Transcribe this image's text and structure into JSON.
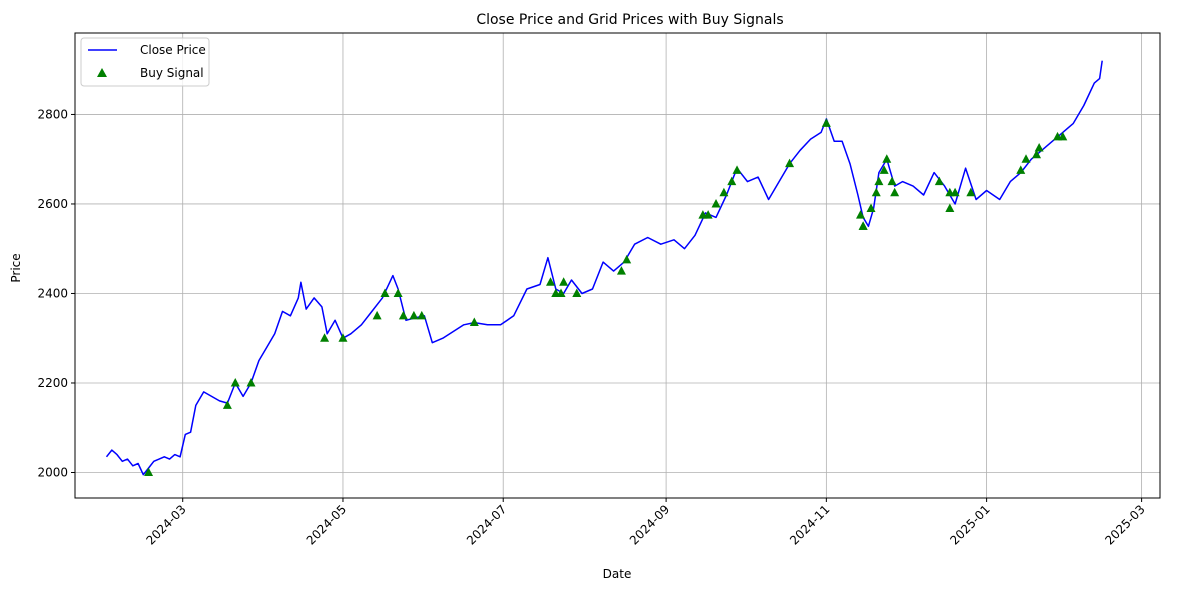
{
  "chart_data": {
    "type": "line",
    "title": "Close Price and Grid Prices with Buy Signals",
    "xlabel": "Date",
    "ylabel": "Price",
    "xlim": [
      "2024-01-20",
      "2025-03-08"
    ],
    "ylim": [
      1943,
      2982
    ],
    "grid": true,
    "legend_position": "top-left",
    "x_ticks": [
      "2024-03",
      "2024-05",
      "2024-07",
      "2024-09",
      "2024-11",
      "2025-01",
      "2025-03"
    ],
    "x_tick_dates": [
      "2024-03-01",
      "2024-05-01",
      "2024-07-01",
      "2024-09-01",
      "2024-11-01",
      "2025-01-01",
      "2025-03-01"
    ],
    "y_ticks": [
      2000,
      2200,
      2400,
      2600,
      2800
    ],
    "colors": {
      "close": "#0000ff",
      "buy": "#008000",
      "grid": "#b0b0b0"
    },
    "series": [
      {
        "name": "Close Price",
        "kind": "line",
        "x": [
          "2024-02-01",
          "2024-02-03",
          "2024-02-05",
          "2024-02-07",
          "2024-02-09",
          "2024-02-11",
          "2024-02-13",
          "2024-02-15",
          "2024-02-17",
          "2024-02-19",
          "2024-02-21",
          "2024-02-23",
          "2024-02-25",
          "2024-02-27",
          "2024-02-29",
          "2024-03-02",
          "2024-03-04",
          "2024-03-06",
          "2024-03-09",
          "2024-03-12",
          "2024-03-15",
          "2024-03-18",
          "2024-03-21",
          "2024-03-24",
          "2024-03-27",
          "2024-03-30",
          "2024-04-02",
          "2024-04-05",
          "2024-04-08",
          "2024-04-11",
          "2024-04-14",
          "2024-04-15",
          "2024-04-17",
          "2024-04-20",
          "2024-04-23",
          "2024-04-25",
          "2024-04-28",
          "2024-05-01",
          "2024-05-04",
          "2024-05-08",
          "2024-05-12",
          "2024-05-16",
          "2024-05-20",
          "2024-05-22",
          "2024-05-25",
          "2024-05-28",
          "2024-06-01",
          "2024-06-04",
          "2024-06-08",
          "2024-06-12",
          "2024-06-16",
          "2024-06-20",
          "2024-06-25",
          "2024-06-30",
          "2024-07-05",
          "2024-07-10",
          "2024-07-15",
          "2024-07-18",
          "2024-07-21",
          "2024-07-24",
          "2024-07-27",
          "2024-07-31",
          "2024-08-04",
          "2024-08-08",
          "2024-08-12",
          "2024-08-16",
          "2024-08-20",
          "2024-08-25",
          "2024-08-30",
          "2024-09-04",
          "2024-09-08",
          "2024-09-12",
          "2024-09-16",
          "2024-09-20",
          "2024-09-24",
          "2024-09-28",
          "2024-10-02",
          "2024-10-06",
          "2024-10-10",
          "2024-10-14",
          "2024-10-18",
          "2024-10-22",
          "2024-10-26",
          "2024-10-30",
          "2024-11-01",
          "2024-11-04",
          "2024-11-07",
          "2024-11-10",
          "2024-11-13",
          "2024-11-15",
          "2024-11-17",
          "2024-11-19",
          "2024-11-21",
          "2024-11-24",
          "2024-11-27",
          "2024-11-30",
          "2024-12-04",
          "2024-12-08",
          "2024-12-12",
          "2024-12-16",
          "2024-12-20",
          "2024-12-24",
          "2024-12-28",
          "2025-01-01",
          "2025-01-06",
          "2025-01-10",
          "2025-01-14",
          "2025-01-18",
          "2025-01-22",
          "2025-01-26",
          "2025-01-30",
          "2025-02-03",
          "2025-02-07",
          "2025-02-11",
          "2025-02-13",
          "2025-02-14"
        ],
        "y": [
          2035,
          2050,
          2040,
          2025,
          2030,
          2015,
          2020,
          1995,
          2010,
          2025,
          2030,
          2035,
          2030,
          2040,
          2035,
          2085,
          2090,
          2150,
          2180,
          2170,
          2160,
          2155,
          2200,
          2170,
          2200,
          2250,
          2280,
          2310,
          2360,
          2350,
          2390,
          2425,
          2365,
          2390,
          2370,
          2310,
          2340,
          2300,
          2310,
          2330,
          2360,
          2390,
          2440,
          2410,
          2340,
          2345,
          2350,
          2290,
          2300,
          2315,
          2330,
          2335,
          2330,
          2330,
          2350,
          2410,
          2420,
          2480,
          2410,
          2400,
          2430,
          2400,
          2410,
          2470,
          2450,
          2470,
          2510,
          2525,
          2510,
          2520,
          2500,
          2530,
          2580,
          2570,
          2620,
          2680,
          2650,
          2660,
          2610,
          2650,
          2690,
          2720,
          2745,
          2760,
          2790,
          2740,
          2740,
          2690,
          2620,
          2570,
          2550,
          2590,
          2670,
          2700,
          2640,
          2650,
          2640,
          2620,
          2670,
          2640,
          2600,
          2680,
          2610,
          2630,
          2610,
          2650,
          2670,
          2700,
          2720,
          2740,
          2760,
          2780,
          2820,
          2870,
          2880,
          2920
        ]
      },
      {
        "name": "Buy Signal",
        "kind": "scatter",
        "marker": "triangle-up",
        "x": [
          "2024-02-17",
          "2024-03-18",
          "2024-03-21",
          "2024-03-27",
          "2024-04-24",
          "2024-05-01",
          "2024-05-14",
          "2024-05-17",
          "2024-05-22",
          "2024-05-24",
          "2024-05-28",
          "2024-05-31",
          "2024-06-20",
          "2024-07-19",
          "2024-07-21",
          "2024-07-23",
          "2024-07-24",
          "2024-07-29",
          "2024-08-15",
          "2024-08-17",
          "2024-09-15",
          "2024-09-17",
          "2024-09-20",
          "2024-09-23",
          "2024-09-26",
          "2024-09-28",
          "2024-10-18",
          "2024-11-01",
          "2024-11-14",
          "2024-11-15",
          "2024-11-15",
          "2024-11-18",
          "2024-11-20",
          "2024-11-21",
          "2024-11-23",
          "2024-11-24",
          "2024-11-26",
          "2024-11-27",
          "2024-12-14",
          "2024-12-18",
          "2024-12-18",
          "2024-12-20",
          "2024-12-26",
          "2025-01-14",
          "2025-01-16",
          "2025-01-20",
          "2025-01-21",
          "2025-01-28",
          "2025-01-30"
        ],
        "y": [
          2000,
          2150,
          2200,
          2200,
          2300,
          2300,
          2350,
          2400,
          2400,
          2350,
          2350,
          2350,
          2335,
          2425,
          2400,
          2400,
          2425,
          2400,
          2450,
          2475,
          2575,
          2575,
          2600,
          2625,
          2650,
          2675,
          2690,
          2780,
          2575,
          2550,
          2550,
          2590,
          2625,
          2650,
          2675,
          2700,
          2650,
          2625,
          2650,
          2625,
          2590,
          2625,
          2625,
          2675,
          2700,
          2710,
          2725,
          2750,
          2750
        ]
      }
    ]
  }
}
